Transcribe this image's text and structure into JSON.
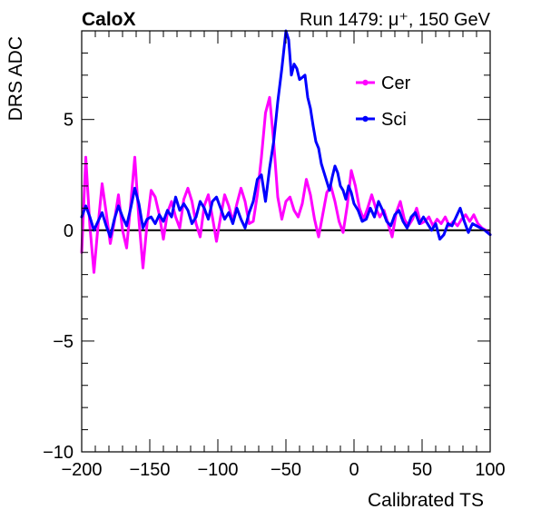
{
  "header": {
    "experiment": "CaloX",
    "run_info": "Run 1479:   μ⁺, 150 GeV"
  },
  "chart_data": {
    "type": "line",
    "xlabel": "Calibrated TS",
    "ylabel": "DRS ADC",
    "xlim": [
      -200,
      100
    ],
    "ylim": [
      -10,
      9
    ],
    "x_ticks": [
      -200,
      -150,
      -100,
      -50,
      0,
      50,
      100
    ],
    "x_tick_labels": [
      "−200",
      "−150",
      "−100",
      "−50",
      "0",
      "50",
      "100"
    ],
    "y_ticks": [
      -10,
      -5,
      0,
      5
    ],
    "y_tick_labels": [
      "−10",
      "−5",
      "0",
      "5"
    ],
    "zero_line": 0,
    "legend_position": "top-right",
    "series": [
      {
        "name": "Cer",
        "color": "#ff00ff",
        "points": [
          [
            -200,
            -1.0
          ],
          [
            -197,
            3.3
          ],
          [
            -194,
            0.2
          ],
          [
            -191,
            -1.9
          ],
          [
            -188,
            0.2
          ],
          [
            -185,
            2.1
          ],
          [
            -182,
            0.8
          ],
          [
            -179,
            -0.6
          ],
          [
            -176,
            0.4
          ],
          [
            -173,
            1.6
          ],
          [
            -170,
            0.0
          ],
          [
            -167,
            -0.8
          ],
          [
            -164,
            1.2
          ],
          [
            -161,
            3.3
          ],
          [
            -158,
            0.5
          ],
          [
            -155,
            -1.7
          ],
          [
            -152,
            0.3
          ],
          [
            -149,
            1.8
          ],
          [
            -146,
            1.5
          ],
          [
            -143,
            0.7
          ],
          [
            -140,
            -0.4
          ],
          [
            -137,
            0.8
          ],
          [
            -134,
            1.3
          ],
          [
            -131,
            0.6
          ],
          [
            -128,
            0.1
          ],
          [
            -125,
            1.4
          ],
          [
            -122,
            1.9
          ],
          [
            -119,
            1.3
          ],
          [
            -116,
            0.3
          ],
          [
            -113,
            -0.3
          ],
          [
            -110,
            1.1
          ],
          [
            -107,
            1.6
          ],
          [
            -104,
            0.6
          ],
          [
            -101,
            -0.5
          ],
          [
            -98,
            0.6
          ],
          [
            -95,
            1.6
          ],
          [
            -92,
            1.1
          ],
          [
            -89,
            0.4
          ],
          [
            -86,
            1.2
          ],
          [
            -83,
            1.9
          ],
          [
            -80,
            1.3
          ],
          [
            -77,
            0.3
          ],
          [
            -74,
            0.4
          ],
          [
            -71,
            1.6
          ],
          [
            -68,
            3.3
          ],
          [
            -65,
            5.3
          ],
          [
            -62,
            6.0
          ],
          [
            -59,
            4.0
          ],
          [
            -56,
            1.5
          ],
          [
            -53,
            0.5
          ],
          [
            -50,
            1.3
          ],
          [
            -47,
            1.5
          ],
          [
            -44,
            0.9
          ],
          [
            -41,
            0.6
          ],
          [
            -38,
            1.2
          ],
          [
            -35,
            2.3
          ],
          [
            -32,
            1.6
          ],
          [
            -29,
            0.5
          ],
          [
            -26,
            -0.3
          ],
          [
            -23,
            0.7
          ],
          [
            -20,
            1.7
          ],
          [
            -17,
            2.0
          ],
          [
            -14,
            1.3
          ],
          [
            -11,
            0.4
          ],
          [
            -8,
            -0.1
          ],
          [
            -5,
            1.1
          ],
          [
            -2,
            2.7
          ],
          [
            1,
            2.0
          ],
          [
            4,
            1.0
          ],
          [
            7,
            0.5
          ],
          [
            10,
            1.0
          ],
          [
            13,
            1.6
          ],
          [
            16,
            1.0
          ],
          [
            19,
            0.6
          ],
          [
            22,
            0.9
          ],
          [
            25,
            0.3
          ],
          [
            28,
            -0.3
          ],
          [
            31,
            0.8
          ],
          [
            34,
            1.3
          ],
          [
            37,
            0.5
          ],
          [
            40,
            0.2
          ],
          [
            43,
            0.5
          ],
          [
            46,
            1.0
          ],
          [
            49,
            0.3
          ],
          [
            52,
            0.4
          ],
          [
            55,
            0.6
          ],
          [
            58,
            0.2
          ],
          [
            61,
            0.5
          ],
          [
            64,
            0.3
          ],
          [
            67,
            0.6
          ],
          [
            70,
            0.2
          ],
          [
            73,
            0.4
          ],
          [
            76,
            0.2
          ],
          [
            79,
            0.5
          ],
          [
            82,
            0.7
          ],
          [
            85,
            0.4
          ],
          [
            88,
            0.7
          ],
          [
            91,
            0.3
          ],
          [
            94,
            0.1
          ],
          [
            97,
            0.0
          ],
          [
            100,
            -0.2
          ]
        ]
      },
      {
        "name": "Sci",
        "color": "#0000ff",
        "points": [
          [
            -200,
            0.6
          ],
          [
            -197,
            1.1
          ],
          [
            -194,
            0.6
          ],
          [
            -191,
            0.0
          ],
          [
            -188,
            0.4
          ],
          [
            -185,
            0.8
          ],
          [
            -182,
            0.2
          ],
          [
            -179,
            -0.3
          ],
          [
            -176,
            0.5
          ],
          [
            -173,
            1.1
          ],
          [
            -170,
            0.6
          ],
          [
            -167,
            0.2
          ],
          [
            -164,
            1.0
          ],
          [
            -161,
            1.9
          ],
          [
            -158,
            1.2
          ],
          [
            -155,
            0.1
          ],
          [
            -152,
            0.5
          ],
          [
            -149,
            0.6
          ],
          [
            -146,
            0.3
          ],
          [
            -143,
            0.7
          ],
          [
            -140,
            0.4
          ],
          [
            -137,
            0.9
          ],
          [
            -134,
            0.6
          ],
          [
            -131,
            1.5
          ],
          [
            -128,
            0.9
          ],
          [
            -125,
            1.2
          ],
          [
            -122,
            0.9
          ],
          [
            -119,
            0.3
          ],
          [
            -116,
            0.6
          ],
          [
            -113,
            1.3
          ],
          [
            -110,
            1.0
          ],
          [
            -107,
            0.5
          ],
          [
            -104,
            1.3
          ],
          [
            -101,
            1.5
          ],
          [
            -98,
            1.0
          ],
          [
            -95,
            0.5
          ],
          [
            -92,
            0.8
          ],
          [
            -89,
            0.3
          ],
          [
            -86,
            1.0
          ],
          [
            -83,
            0.5
          ],
          [
            -80,
            0.1
          ],
          [
            -77,
            0.8
          ],
          [
            -74,
            1.3
          ],
          [
            -71,
            2.3
          ],
          [
            -68,
            2.5
          ],
          [
            -65,
            1.3
          ],
          [
            -62,
            2.8
          ],
          [
            -59,
            4.0
          ],
          [
            -56,
            5.8
          ],
          [
            -53,
            7.3
          ],
          [
            -50,
            9.0
          ],
          [
            -48,
            8.6
          ],
          [
            -46,
            7.0
          ],
          [
            -44,
            7.5
          ],
          [
            -42,
            7.3
          ],
          [
            -40,
            6.8
          ],
          [
            -38,
            6.9
          ],
          [
            -36,
            7.0
          ],
          [
            -34,
            6.0
          ],
          [
            -32,
            5.5
          ],
          [
            -30,
            4.7
          ],
          [
            -28,
            4.0
          ],
          [
            -26,
            3.7
          ],
          [
            -24,
            3.0
          ],
          [
            -22,
            2.6
          ],
          [
            -20,
            2.2
          ],
          [
            -18,
            1.8
          ],
          [
            -16,
            2.4
          ],
          [
            -14,
            2.9
          ],
          [
            -12,
            2.6
          ],
          [
            -10,
            2.0
          ],
          [
            -8,
            1.8
          ],
          [
            -6,
            1.4
          ],
          [
            -4,
            2.0
          ],
          [
            -2,
            1.7
          ],
          [
            0,
            1.2
          ],
          [
            3,
            0.9
          ],
          [
            6,
            0.4
          ],
          [
            9,
            0.5
          ],
          [
            12,
            1.0
          ],
          [
            15,
            0.6
          ],
          [
            18,
            1.3
          ],
          [
            21,
            0.9
          ],
          [
            24,
            0.4
          ],
          [
            27,
            0.2
          ],
          [
            30,
            0.7
          ],
          [
            33,
            0.9
          ],
          [
            36,
            0.4
          ],
          [
            39,
            0.1
          ],
          [
            42,
            0.6
          ],
          [
            45,
            0.8
          ],
          [
            48,
            0.3
          ],
          [
            51,
            0.6
          ],
          [
            54,
            0.3
          ],
          [
            57,
            0.0
          ],
          [
            60,
            0.3
          ],
          [
            63,
            -0.4
          ],
          [
            66,
            -0.2
          ],
          [
            69,
            0.3
          ],
          [
            72,
            0.2
          ],
          [
            75,
            0.6
          ],
          [
            78,
            1.0
          ],
          [
            81,
            0.4
          ],
          [
            84,
            -0.1
          ],
          [
            87,
            0.3
          ],
          [
            90,
            0.2
          ],
          [
            93,
            0.1
          ],
          [
            96,
            0.0
          ],
          [
            100,
            -0.2
          ]
        ]
      }
    ]
  }
}
